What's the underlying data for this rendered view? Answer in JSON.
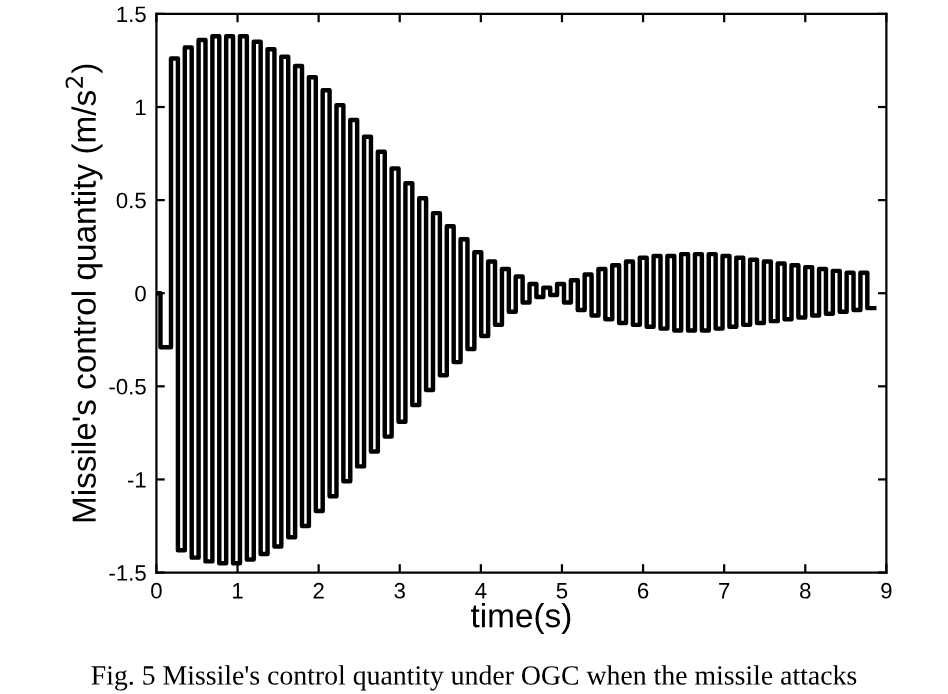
{
  "chart_data": {
    "type": "step",
    "xlabel": "time(s)",
    "ylabel": "Missile's control quantity (m/s$^{2}$)",
    "annotations": [
      "Fig. 5 Missile's control quantity under OGC when the missile attacks"
    ],
    "xlim": [
      0,
      9
    ],
    "xticks": [
      0,
      1,
      2,
      3,
      4,
      5,
      6,
      7,
      8,
      9
    ],
    "ylim": [
      -1.5,
      1.5
    ],
    "yticks": [
      -1.5,
      -1,
      -0.5,
      0,
      0.5,
      1,
      1.5
    ],
    "grid": false,
    "legend": false,
    "line_style": "solid",
    "series": [
      {
        "color": "#000000",
        "x": [
          0,
          0.05,
          0.18,
          0.265,
          0.35,
          0.435,
          0.52,
          0.605,
          0.69,
          0.775,
          0.86,
          0.945,
          1.03,
          1.115,
          1.2,
          1.285,
          1.37,
          1.455,
          1.54,
          1.625,
          1.71,
          1.795,
          1.88,
          1.965,
          2.05,
          2.135,
          2.22,
          2.305,
          2.39,
          2.475,
          2.56,
          2.645,
          2.73,
          2.815,
          2.9,
          2.985,
          3.07,
          3.155,
          3.24,
          3.325,
          3.41,
          3.495,
          3.58,
          3.665,
          3.75,
          3.835,
          3.92,
          4.005,
          4.09,
          4.175,
          4.26,
          4.345,
          4.43,
          4.515,
          4.6,
          4.685,
          4.77,
          4.855,
          4.94,
          5.025,
          5.11,
          5.195,
          5.28,
          5.365,
          5.45,
          5.535,
          5.62,
          5.705,
          5.79,
          5.875,
          5.96,
          6.045,
          6.13,
          6.215,
          6.3,
          6.385,
          6.47,
          6.555,
          6.64,
          6.725,
          6.81,
          6.895,
          6.98,
          7.065,
          7.15,
          7.235,
          7.32,
          7.405,
          7.49,
          7.575,
          7.66,
          7.745,
          7.83,
          7.915,
          8.0,
          8.085,
          8.17,
          8.255,
          8.34,
          8.425,
          8.51,
          8.595,
          8.68,
          8.765,
          8.85
        ],
        "values": [
          0,
          -0.29,
          1.26,
          -1.38,
          1.32,
          -1.42,
          1.36,
          -1.44,
          1.38,
          -1.45,
          1.38,
          -1.45,
          1.38,
          -1.43,
          1.35,
          -1.4,
          1.31,
          -1.36,
          1.27,
          -1.31,
          1.22,
          -1.25,
          1.16,
          -1.17,
          1.09,
          -1.09,
          1.01,
          -1.01,
          0.93,
          -0.93,
          0.84,
          -0.85,
          0.76,
          -0.77,
          0.67,
          -0.69,
          0.59,
          -0.6,
          0.51,
          -0.52,
          0.43,
          -0.44,
          0.36,
          -0.37,
          0.29,
          -0.3,
          0.22,
          -0.23,
          0.17,
          -0.17,
          0.13,
          -0.1,
          0.09,
          -0.05,
          0.05,
          -0.02,
          0.03,
          -0.01,
          0.05,
          -0.05,
          0.07,
          -0.09,
          0.1,
          -0.12,
          0.13,
          -0.14,
          0.15,
          -0.16,
          0.17,
          -0.17,
          0.19,
          -0.18,
          0.2,
          -0.19,
          0.2,
          -0.2,
          0.21,
          -0.2,
          0.21,
          -0.2,
          0.21,
          -0.19,
          0.2,
          -0.18,
          0.19,
          -0.17,
          0.18,
          -0.16,
          0.17,
          -0.15,
          0.16,
          -0.14,
          0.15,
          -0.13,
          0.14,
          -0.12,
          0.13,
          -0.11,
          0.12,
          -0.1,
          0.11,
          -0.09,
          0.11,
          -0.08,
          -0.08
        ]
      }
    ]
  }
}
